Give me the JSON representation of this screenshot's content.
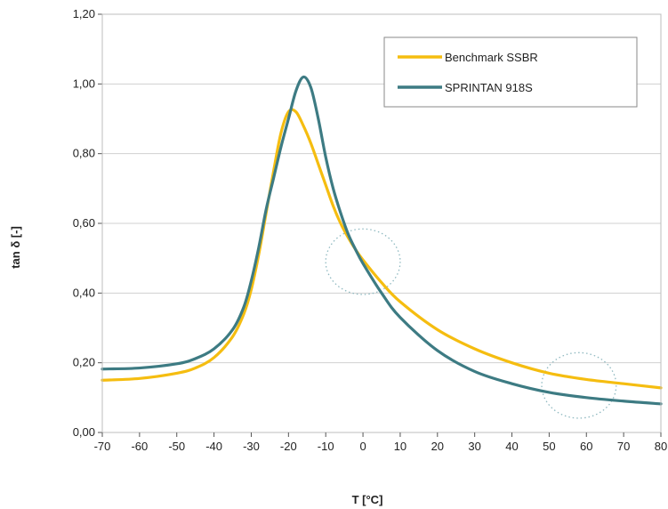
{
  "chart_data": {
    "type": "line",
    "xlabel": "T [°C]",
    "ylabel": "tan δ [-]",
    "xlim": [
      -70,
      80
    ],
    "ylim": [
      0,
      1.2
    ],
    "x_ticks": [
      "-70",
      "-60",
      "-50",
      "-40",
      "-30",
      "-20",
      "-10",
      "0",
      "10",
      "20",
      "30",
      "40",
      "50",
      "60",
      "70",
      "80"
    ],
    "y_ticks": [
      "0,00",
      "0,20",
      "0,40",
      "0,60",
      "0,80",
      "1,00",
      "1,20"
    ],
    "legend_position": "top-right",
    "series": [
      {
        "name": "Benchmark SSBR",
        "color": "#f5bd10",
        "x": [
          -70,
          -60,
          -50,
          -45,
          -40,
          -35,
          -32,
          -30,
          -28,
          -26,
          -24,
          -22,
          -20,
          -18,
          -16,
          -14,
          -12,
          -10,
          -8,
          -6,
          -4,
          -2,
          0,
          5,
          10,
          20,
          30,
          40,
          50,
          60,
          70,
          80
        ],
        "y": [
          0.15,
          0.155,
          0.17,
          0.185,
          0.215,
          0.275,
          0.34,
          0.41,
          0.51,
          0.63,
          0.75,
          0.86,
          0.92,
          0.92,
          0.88,
          0.83,
          0.77,
          0.71,
          0.65,
          0.6,
          0.56,
          0.525,
          0.495,
          0.43,
          0.375,
          0.295,
          0.24,
          0.2,
          0.17,
          0.152,
          0.14,
          0.128
        ]
      },
      {
        "name": "SPRINTAN 918S",
        "color": "#3d7b83",
        "x": [
          -70,
          -60,
          -50,
          -45,
          -40,
          -35,
          -32,
          -30,
          -28,
          -26,
          -24,
          -22,
          -20,
          -18,
          -16,
          -14,
          -12,
          -10,
          -8,
          -6,
          -4,
          -2,
          0,
          5,
          10,
          20,
          30,
          40,
          50,
          60,
          70,
          80
        ],
        "y": [
          0.182,
          0.185,
          0.197,
          0.212,
          0.24,
          0.295,
          0.36,
          0.435,
          0.53,
          0.64,
          0.73,
          0.82,
          0.9,
          0.98,
          1.02,
          0.99,
          0.9,
          0.79,
          0.7,
          0.63,
          0.57,
          0.525,
          0.485,
          0.4,
          0.33,
          0.235,
          0.175,
          0.14,
          0.115,
          0.1,
          0.09,
          0.082
        ]
      }
    ],
    "annotations": [
      {
        "type": "dotted-circle",
        "x": 0,
        "y": 0.49,
        "rx": 10,
        "ry": 0.094,
        "color": "#8fb9c0"
      },
      {
        "type": "dotted-circle",
        "x": 58,
        "y": 0.135,
        "rx": 10,
        "ry": 0.094,
        "color": "#8fb9c0"
      }
    ]
  }
}
